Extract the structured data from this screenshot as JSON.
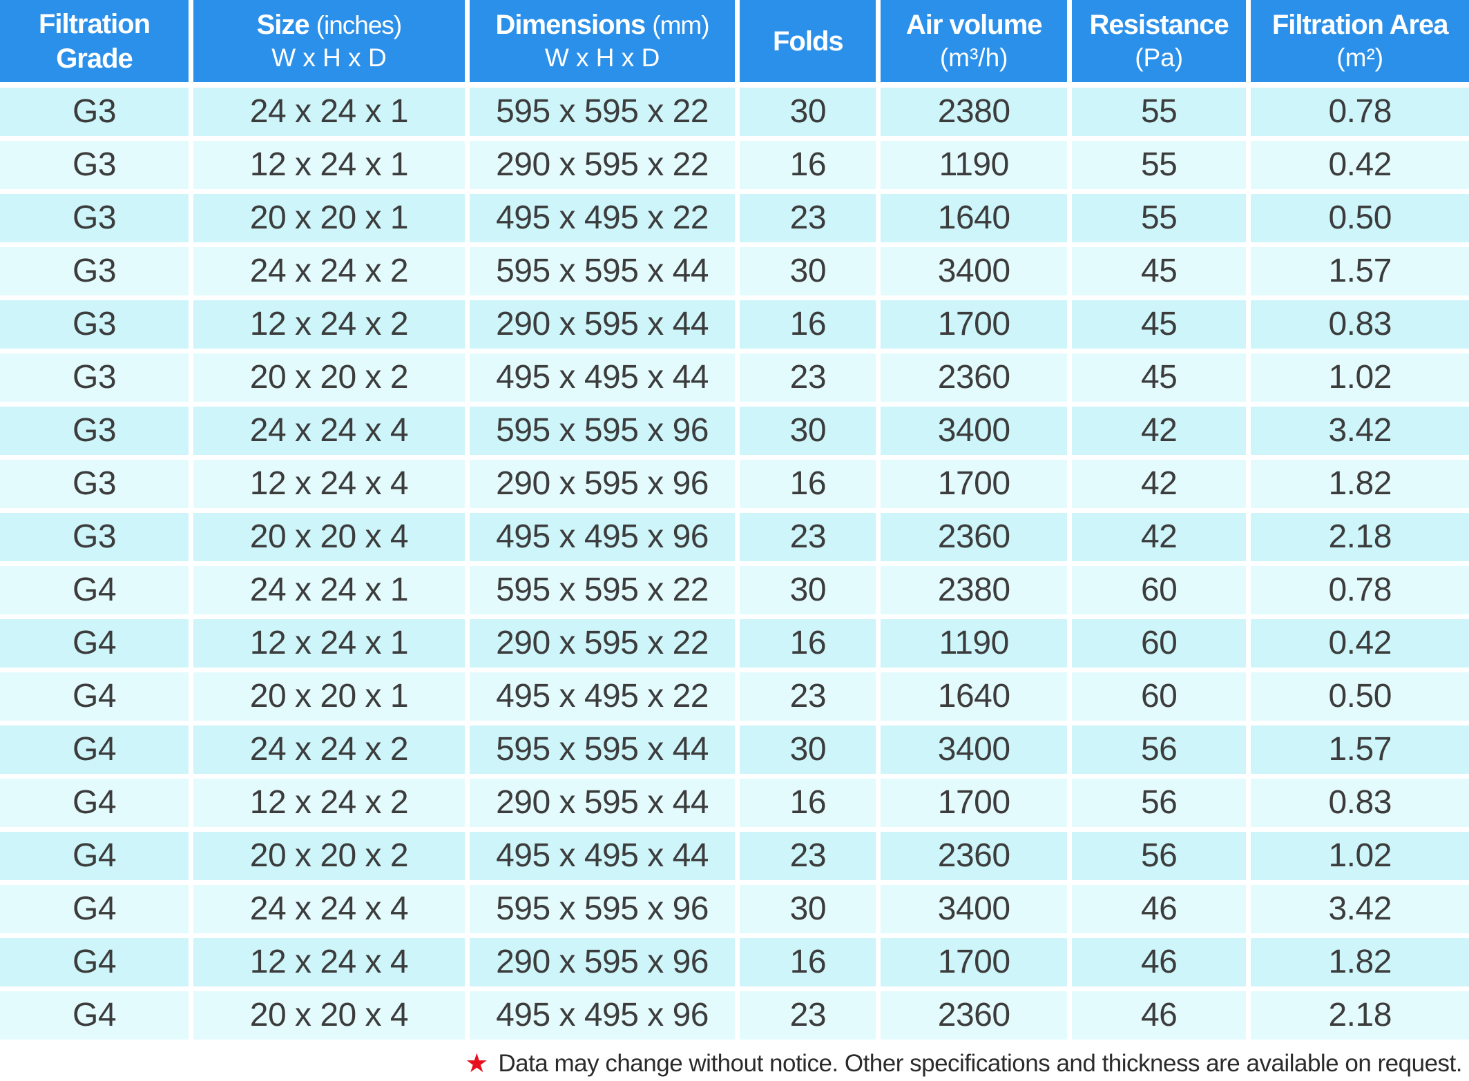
{
  "table": {
    "header": {
      "grade": {
        "line1": "Filtration",
        "line2": "Grade"
      },
      "size": {
        "bold": "Size",
        "unit": "(inches)",
        "line2": "W x H x D"
      },
      "dimensions": {
        "bold": "Dimensions",
        "unit": "(mm)",
        "line2": "W x H x D"
      },
      "folds": {
        "bold": "Folds"
      },
      "air_volume": {
        "bold": "Air volume",
        "line2": "(m³/h)"
      },
      "resistance": {
        "bold": "Resistance",
        "line2": "(Pa)"
      },
      "filtration_area": {
        "bold": "Filtration Area",
        "line2": "(m²)"
      }
    },
    "rows": [
      [
        "G3",
        "24 x 24 x 1",
        "595 x 595 x 22",
        "30",
        "2380",
        "55",
        "0.78"
      ],
      [
        "G3",
        "12 x 24 x 1",
        "290 x 595 x 22",
        "16",
        "1190",
        "55",
        "0.42"
      ],
      [
        "G3",
        "20 x 20 x 1",
        "495 x 495 x 22",
        "23",
        "1640",
        "55",
        "0.50"
      ],
      [
        "G3",
        "24 x 24 x 2",
        "595 x 595 x 44",
        "30",
        "3400",
        "45",
        "1.57"
      ],
      [
        "G3",
        "12 x 24 x 2",
        "290 x 595 x 44",
        "16",
        "1700",
        "45",
        "0.83"
      ],
      [
        "G3",
        "20 x 20 x 2",
        "495 x 495 x 44",
        "23",
        "2360",
        "45",
        "1.02"
      ],
      [
        "G3",
        "24 x 24 x 4",
        "595 x 595 x 96",
        "30",
        "3400",
        "42",
        "3.42"
      ],
      [
        "G3",
        "12 x 24 x 4",
        "290 x 595 x 96",
        "16",
        "1700",
        "42",
        "1.82"
      ],
      [
        "G3",
        "20 x 20 x 4",
        "495 x 495 x 96",
        "23",
        "2360",
        "42",
        "2.18"
      ],
      [
        "G4",
        "24 x 24 x 1",
        "595 x 595 x 22",
        "30",
        "2380",
        "60",
        "0.78"
      ],
      [
        "G4",
        "12 x 24 x 1",
        "290 x 595 x 22",
        "16",
        "1190",
        "60",
        "0.42"
      ],
      [
        "G4",
        "20 x 20 x 1",
        "495 x 495 x 22",
        "23",
        "1640",
        "60",
        "0.50"
      ],
      [
        "G4",
        "24 x 24 x 2",
        "595 x 595 x 44",
        "30",
        "3400",
        "56",
        "1.57"
      ],
      [
        "G4",
        "12 x 24 x 2",
        "290 x 595 x 44",
        "16",
        "1700",
        "56",
        "0.83"
      ],
      [
        "G4",
        "20 x 20 x 2",
        "495 x 495 x 44",
        "23",
        "2360",
        "56",
        "1.02"
      ],
      [
        "G4",
        "24 x 24 x 4",
        "595 x 595 x 96",
        "30",
        "3400",
        "46",
        "3.42"
      ],
      [
        "G4",
        "12 x 24 x 4",
        "290 x 595 x 96",
        "16",
        "1700",
        "46",
        "1.82"
      ],
      [
        "G4",
        "20 x 20 x 4",
        "495 x 495 x 96",
        "23",
        "2360",
        "46",
        "2.18"
      ]
    ]
  },
  "footer": {
    "star": "★",
    "note": "Data may change without notice. Other specifications and thickness are available on request."
  },
  "colors": {
    "header_bg": "#2b90ea",
    "row_odd": "#cdf5fa",
    "row_even": "#e4fbfd",
    "grid": "#ffffff",
    "text": "#3c3c3c",
    "header_text": "#ffffff",
    "note_star": "#e8101e",
    "note_text": "#2b2b2b"
  }
}
